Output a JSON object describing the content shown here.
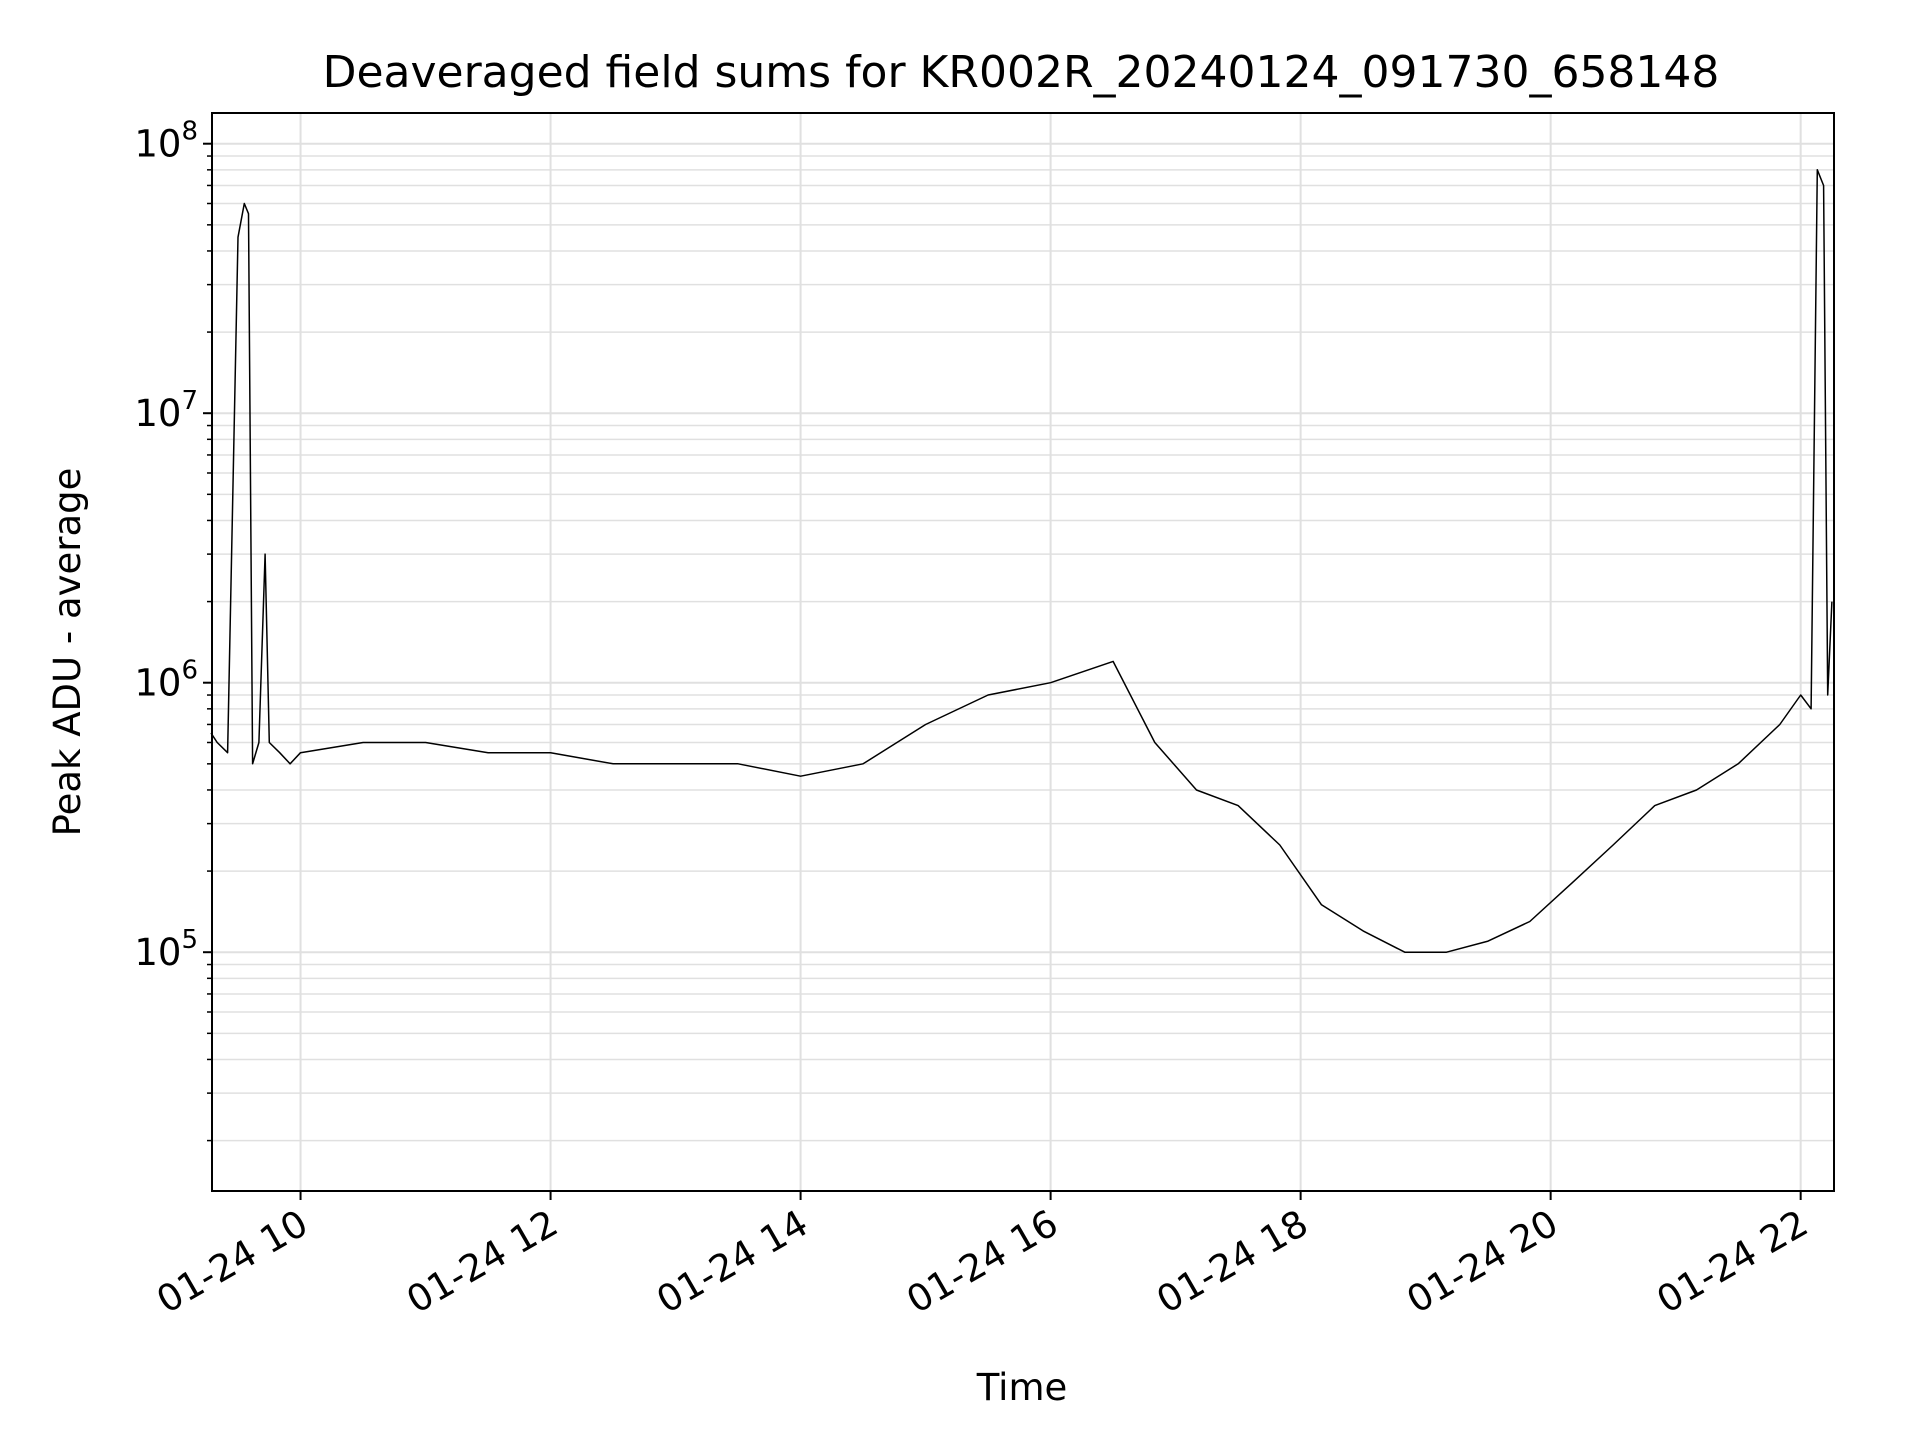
{
  "chart_data": {
    "type": "line",
    "title": "Deaveraged field sums for KR002R_20240124_091730_658148",
    "xlabel": "Time",
    "ylabel": "Peak ADU - average",
    "y_scale": "log",
    "ylim": [
      13000,
      130000000
    ],
    "xlim": [
      "2024-01-24 09:17:30",
      "2024-01-24 22:16:00"
    ],
    "grid": true,
    "line_color": "#000000",
    "grid_color": "#e0e0e0",
    "x_ticks": [
      {
        "time": "2024-01-24 10:00",
        "label": "01-24 10"
      },
      {
        "time": "2024-01-24 12:00",
        "label": "01-24 12"
      },
      {
        "time": "2024-01-24 14:00",
        "label": "01-24 14"
      },
      {
        "time": "2024-01-24 16:00",
        "label": "01-24 16"
      },
      {
        "time": "2024-01-24 18:00",
        "label": "01-24 18"
      },
      {
        "time": "2024-01-24 20:00",
        "label": "01-24 20"
      },
      {
        "time": "2024-01-24 22:00",
        "label": "01-24 22"
      }
    ],
    "y_ticks": [
      {
        "value": 100000,
        "base": "10",
        "exp": "5"
      },
      {
        "value": 1000000,
        "base": "10",
        "exp": "6"
      },
      {
        "value": 10000000,
        "base": "10",
        "exp": "7"
      },
      {
        "value": 100000000,
        "base": "10",
        "exp": "8"
      }
    ],
    "series": [
      {
        "x": [
          "2024-01-24 09:17",
          "2024-01-24 09:20",
          "2024-01-24 09:25",
          "2024-01-24 09:30",
          "2024-01-24 09:33",
          "2024-01-24 09:35",
          "2024-01-24 09:37",
          "2024-01-24 09:40",
          "2024-01-24 09:43",
          "2024-01-24 09:45",
          "2024-01-24 09:50",
          "2024-01-24 09:55",
          "2024-01-24 10:00",
          "2024-01-24 10:30",
          "2024-01-24 11:00",
          "2024-01-24 11:30",
          "2024-01-24 12:00",
          "2024-01-24 12:30",
          "2024-01-24 13:00",
          "2024-01-24 13:30",
          "2024-01-24 14:00",
          "2024-01-24 14:30",
          "2024-01-24 15:00",
          "2024-01-24 15:30",
          "2024-01-24 16:00",
          "2024-01-24 16:30",
          "2024-01-24 16:50",
          "2024-01-24 17:10",
          "2024-01-24 17:30",
          "2024-01-24 17:50",
          "2024-01-24 18:10",
          "2024-01-24 18:30",
          "2024-01-24 18:50",
          "2024-01-24 19:10",
          "2024-01-24 19:30",
          "2024-01-24 19:50",
          "2024-01-24 20:10",
          "2024-01-24 20:30",
          "2024-01-24 20:50",
          "2024-01-24 21:10",
          "2024-01-24 21:30",
          "2024-01-24 21:50",
          "2024-01-24 22:00",
          "2024-01-24 22:05",
          "2024-01-24 22:08",
          "2024-01-24 22:11",
          "2024-01-24 22:13",
          "2024-01-24 22:15"
        ],
        "y": [
          650000,
          600000,
          550000,
          45000000,
          60000000,
          55000000,
          500000,
          600000,
          3000000,
          600000,
          550000,
          500000,
          550000,
          600000,
          600000,
          550000,
          550000,
          500000,
          500000,
          500000,
          450000,
          500000,
          700000,
          900000,
          1000000,
          1200000,
          600000,
          400000,
          350000,
          250000,
          150000,
          120000,
          100000,
          100000,
          110000,
          130000,
          180000,
          250000,
          350000,
          400000,
          500000,
          700000,
          900000,
          800000,
          80000000,
          70000000,
          900000,
          2000000
        ]
      }
    ]
  }
}
